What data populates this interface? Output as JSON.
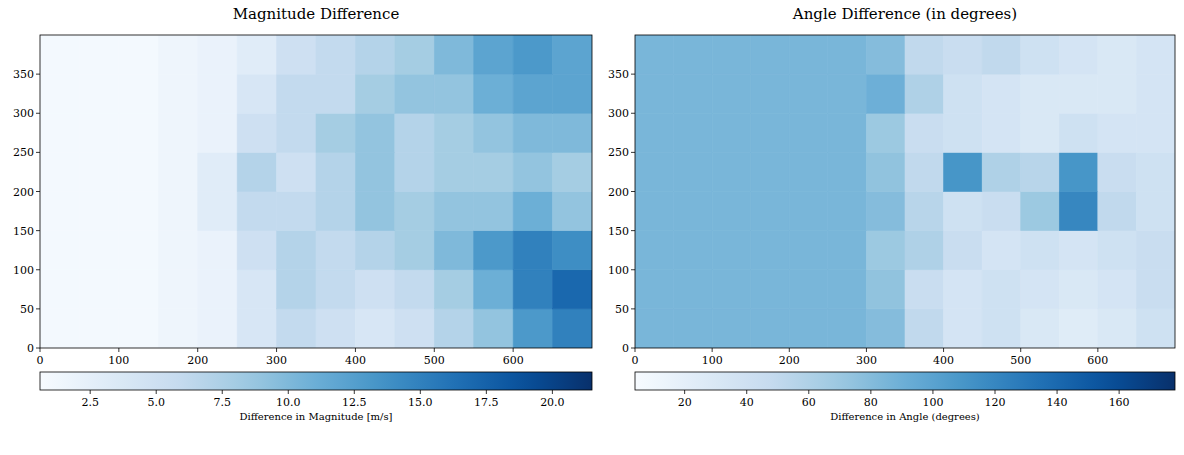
{
  "chart_data": [
    {
      "type": "heatmap",
      "title": "Magnitude Difference",
      "xlim": [
        0,
        700
      ],
      "ylim": [
        0,
        400
      ],
      "xticks": [
        0,
        100,
        200,
        300,
        400,
        500,
        600
      ],
      "yticks": [
        0,
        50,
        100,
        150,
        200,
        250,
        300,
        350
      ],
      "x_edges": [
        0,
        50,
        100,
        150,
        200,
        250,
        300,
        350,
        400,
        450,
        500,
        550,
        600,
        650,
        700
      ],
      "y_edges": [
        0,
        50,
        100,
        150,
        200,
        250,
        300,
        350,
        400
      ],
      "cells": [
        [
          1,
          1,
          1,
          1.5,
          2,
          4,
          6,
          5,
          4,
          5,
          7,
          9,
          13,
          15
        ],
        [
          1,
          1,
          1,
          1.5,
          2,
          4,
          7,
          6,
          5,
          6,
          8,
          11,
          15,
          17
        ],
        [
          1,
          1,
          1,
          1.5,
          2,
          5,
          7,
          6,
          7,
          8,
          10,
          13,
          15,
          14
        ],
        [
          1,
          1,
          1,
          1.5,
          3,
          6,
          6,
          7,
          9,
          8,
          9,
          9,
          11,
          9
        ],
        [
          1,
          1,
          1,
          1.5,
          3,
          7,
          5,
          7,
          9,
          7,
          8,
          8,
          9,
          8
        ],
        [
          1,
          1,
          1,
          1.5,
          2,
          5,
          6,
          8,
          9,
          7,
          8,
          9,
          10,
          10
        ],
        [
          1,
          1,
          1,
          1.5,
          2,
          4,
          6,
          6,
          8,
          9,
          9,
          11,
          12,
          12
        ],
        [
          1,
          1,
          1,
          1.5,
          2,
          3,
          5,
          6,
          7,
          8,
          10,
          12,
          13,
          12
        ]
      ],
      "colorbar_label": "Difference in Magnitude [m/s]",
      "colorbar_range": [
        0.6,
        21.5
      ],
      "colorbar_ticks": [
        2.5,
        {
          "value": 5,
          "label": "5.0"
        },
        7.5,
        {
          "value": 10,
          "label": "10.0"
        },
        12.5,
        {
          "value": 15,
          "label": "15.0"
        },
        17.5,
        {
          "value": 20,
          "label": "20.0"
        }
      ]
    },
    {
      "type": "heatmap",
      "title": "Angle Difference (in degrees)",
      "xlim": [
        0,
        700
      ],
      "ylim": [
        0,
        400
      ],
      "xticks": [
        0,
        100,
        200,
        300,
        400,
        500,
        600
      ],
      "yticks": [
        0,
        50,
        100,
        150,
        200,
        250,
        300,
        350
      ],
      "x_edges": [
        0,
        50,
        100,
        150,
        200,
        250,
        300,
        350,
        400,
        450,
        500,
        550,
        600,
        650,
        700
      ],
      "y_edges": [
        0,
        50,
        100,
        150,
        200,
        250,
        300,
        350,
        400
      ],
      "cells": [
        [
          85,
          85,
          85,
          85,
          85,
          85,
          80,
          50,
          35,
          40,
          30,
          25,
          30,
          40
        ],
        [
          85,
          85,
          85,
          85,
          85,
          85,
          75,
          45,
          35,
          40,
          35,
          30,
          35,
          45
        ],
        [
          85,
          85,
          85,
          85,
          85,
          85,
          70,
          60,
          45,
          35,
          40,
          35,
          40,
          45
        ],
        [
          85,
          85,
          85,
          85,
          85,
          85,
          80,
          55,
          40,
          45,
          70,
          120,
          50,
          40
        ],
        [
          85,
          85,
          85,
          85,
          85,
          85,
          75,
          50,
          110,
          60,
          55,
          110,
          45,
          40
        ],
        [
          85,
          85,
          85,
          85,
          85,
          85,
          70,
          45,
          40,
          35,
          30,
          40,
          35,
          35
        ],
        [
          85,
          85,
          85,
          85,
          85,
          85,
          90,
          60,
          40,
          35,
          30,
          30,
          30,
          35
        ],
        [
          85,
          85,
          85,
          85,
          85,
          85,
          80,
          50,
          45,
          50,
          40,
          35,
          30,
          35
        ]
      ],
      "colorbar_label": "Difference in Angle (degrees)",
      "colorbar_range": [
        4,
        178
      ],
      "colorbar_ticks": [
        20,
        40,
        60,
        80,
        100,
        120,
        140,
        160
      ]
    }
  ]
}
